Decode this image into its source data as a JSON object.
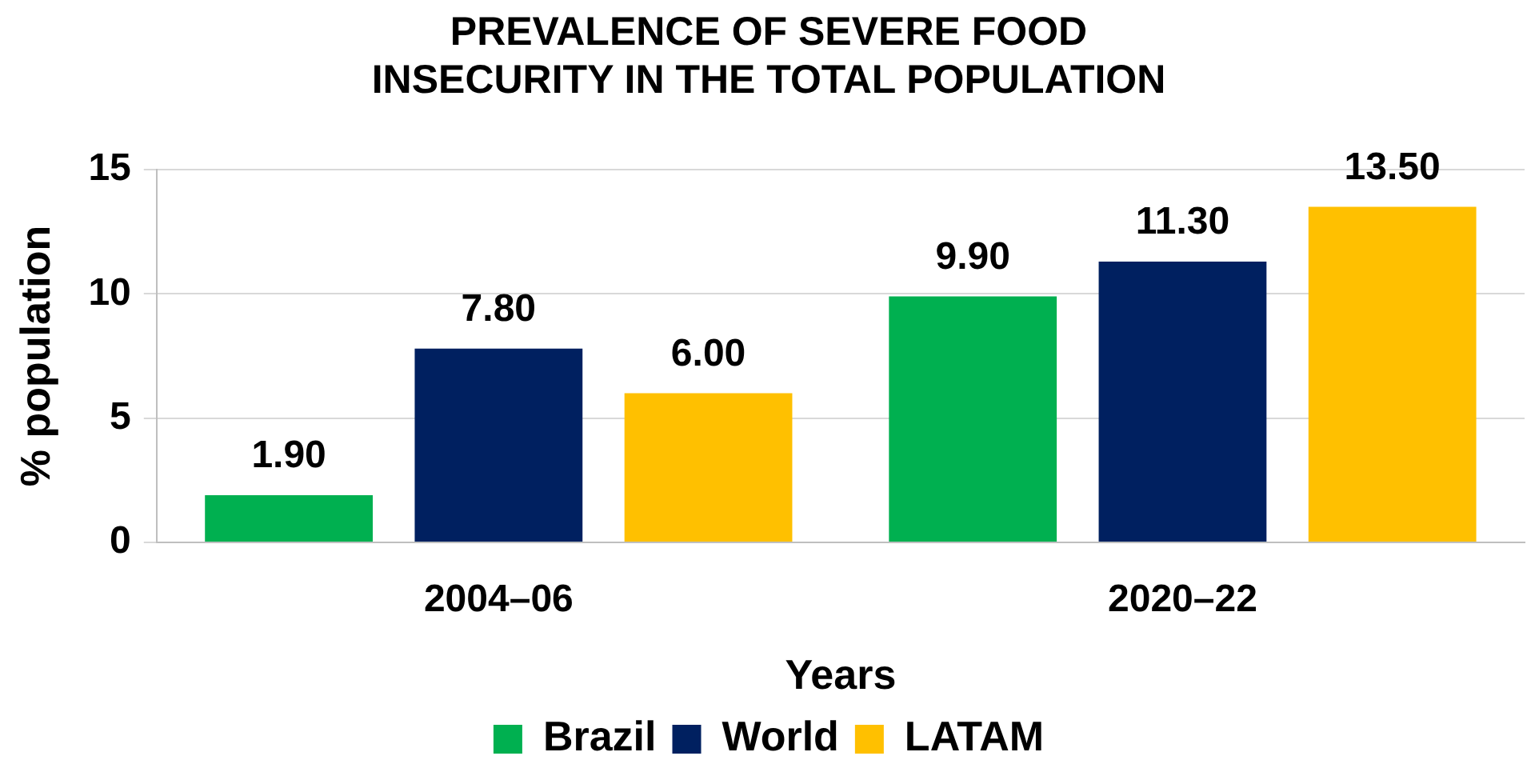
{
  "chart_data": {
    "type": "bar",
    "title": "PREVALENCE OF SEVERE FOOD INSECURITY IN THE TOTAL POPULATION",
    "xlabel": "Years",
    "ylabel": "% population",
    "categories": [
      "2004–06",
      "2020–22"
    ],
    "series": [
      {
        "name": "Brazil",
        "color": "#00b050",
        "values": [
          1.9,
          9.9
        ],
        "value_labels": [
          "1.90",
          "9.90"
        ]
      },
      {
        "name": "World",
        "color": "#002060",
        "values": [
          7.8,
          11.3
        ],
        "value_labels": [
          "7.80",
          "11.30"
        ]
      },
      {
        "name": "LATAM",
        "color": "#ffc000",
        "values": [
          6.0,
          13.5
        ],
        "value_labels": [
          "6.00",
          "13.50"
        ]
      }
    ],
    "ylim": [
      0,
      15
    ],
    "yticks": [
      0,
      5,
      10,
      15
    ],
    "grid": "y",
    "legend": "bottom"
  }
}
